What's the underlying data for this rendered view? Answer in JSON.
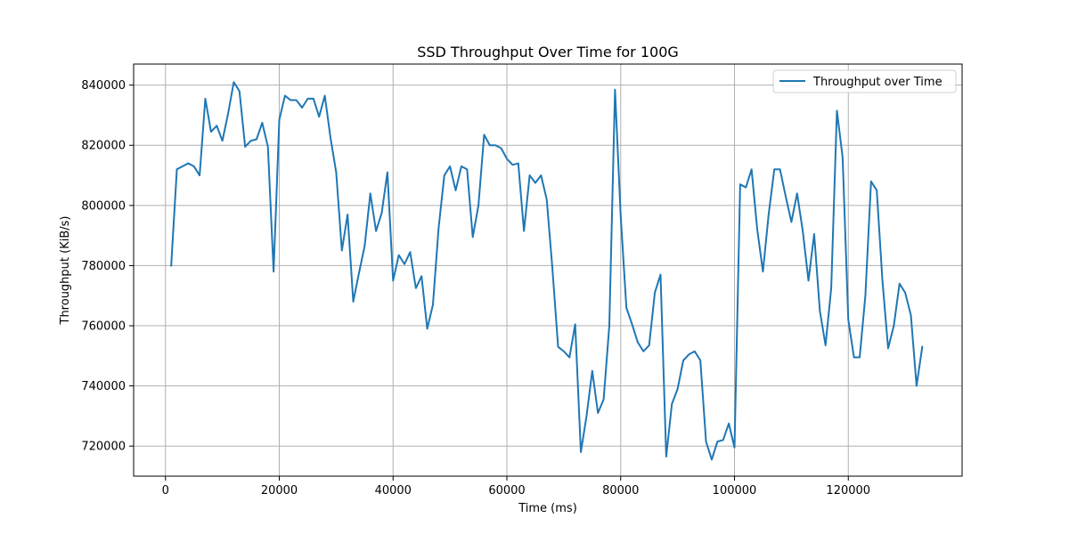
{
  "chart_data": {
    "type": "line",
    "title": "SSD Throughput Over Time for 100G",
    "xlabel": "Time (ms)",
    "ylabel": "Throughput (KiB/s)",
    "xlim": [
      -5600,
      140000
    ],
    "ylim": [
      710000,
      847000
    ],
    "xticks": [
      0,
      20000,
      40000,
      60000,
      80000,
      100000,
      120000
    ],
    "yticks": [
      720000,
      740000,
      760000,
      780000,
      800000,
      820000,
      840000
    ],
    "grid": true,
    "legend_position": "top-right",
    "line_color": "#1f77b4",
    "series": [
      {
        "name": "Throughput over Time",
        "x": [
          1000,
          2000,
          3000,
          4000,
          5000,
          6000,
          7000,
          8000,
          9000,
          10000,
          11000,
          12000,
          13000,
          14000,
          15000,
          16000,
          17000,
          18000,
          19000,
          20000,
          21000,
          22000,
          23000,
          24000,
          25000,
          26000,
          27000,
          28000,
          29000,
          30000,
          31000,
          32000,
          33000,
          34000,
          35000,
          36000,
          37000,
          38000,
          39000,
          40000,
          41000,
          42000,
          43000,
          44000,
          45000,
          46000,
          47000,
          48000,
          49000,
          50000,
          51000,
          52000,
          53000,
          54000,
          55000,
          56000,
          57000,
          58000,
          59000,
          60000,
          61000,
          62000,
          63000,
          64000,
          65000,
          66000,
          67000,
          68000,
          69000,
          70000,
          71000,
          72000,
          73000,
          74000,
          75000,
          76000,
          77000,
          78000,
          79000,
          80000,
          81000,
          82000,
          83000,
          84000,
          85000,
          86000,
          87000,
          88000,
          89000,
          90000,
          91000,
          92000,
          93000,
          94000,
          95000,
          96000,
          97000,
          98000,
          99000,
          100000,
          101000,
          102000,
          103000,
          104000,
          105000,
          106000,
          107000,
          108000,
          109000,
          110000,
          111000,
          112000,
          113000,
          114000,
          115000,
          116000,
          117000,
          118000,
          119000,
          120000,
          121000,
          122000,
          123000,
          124000,
          125000,
          126000,
          127000,
          128000,
          129000,
          130000,
          131000,
          132000,
          133000
        ],
        "values": [
          780000,
          812000,
          813000,
          814000,
          813000,
          810000,
          835500,
          824500,
          826500,
          821500,
          830500,
          841000,
          838000,
          819500,
          821500,
          822000,
          827500,
          819500,
          778000,
          828500,
          836500,
          835000,
          835000,
          832500,
          835500,
          835500,
          829500,
          836500,
          822500,
          811000,
          785000,
          797000,
          768000,
          777500,
          786500,
          804000,
          791500,
          797500,
          811000,
          775000,
          783500,
          780500,
          784500,
          772500,
          776500,
          759000,
          767000,
          792500,
          810000,
          813000,
          805000,
          813000,
          812000,
          789500,
          800000,
          823500,
          820000,
          820000,
          819000,
          815500,
          813500,
          814000,
          791500,
          810000,
          807500,
          810000,
          802000,
          779000,
          753000,
          751500,
          749500,
          760500,
          718000,
          730000,
          745000,
          731000,
          735500,
          760000,
          838500,
          796500,
          766000,
          760500,
          754500,
          751500,
          753500,
          771000,
          777000,
          716500,
          734000,
          739000,
          748500,
          750500,
          751500,
          748500,
          721500,
          715500,
          721500,
          722000,
          727500,
          719500,
          807000,
          806000,
          812000,
          792000,
          778000,
          797000,
          812000,
          812000,
          803000,
          794500,
          804000,
          791500,
          775000,
          790500,
          765000,
          753500,
          772500,
          831500,
          816000,
          762000,
          749500,
          749500,
          770000,
          808000,
          805000,
          775000,
          752500,
          760000,
          774000,
          771000,
          763500,
          740000,
          753000
        ]
      }
    ]
  }
}
